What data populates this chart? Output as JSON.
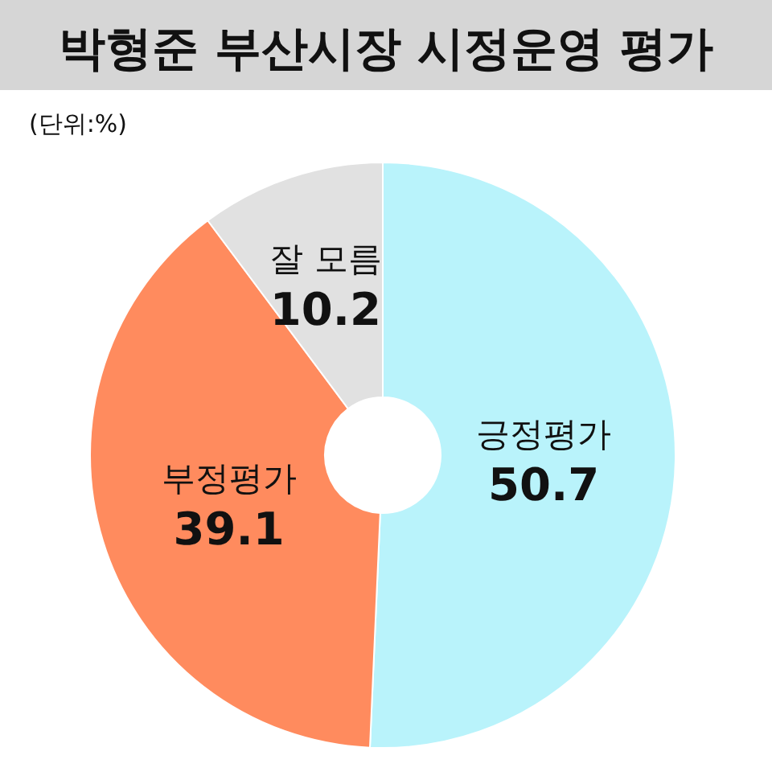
{
  "chart_data": {
    "type": "donut",
    "title": "박형준 부산시장 시정운영 평가",
    "annotations": [
      "(단위:%)"
    ],
    "categories": [
      "긍정평가",
      "부정평가",
      "잘 모름"
    ],
    "values": [
      50.7,
      39.1,
      10.2
    ],
    "colors": [
      "#b9f3fb",
      "#ff8b5e",
      "#e1e1e1"
    ],
    "data_labels": true
  }
}
